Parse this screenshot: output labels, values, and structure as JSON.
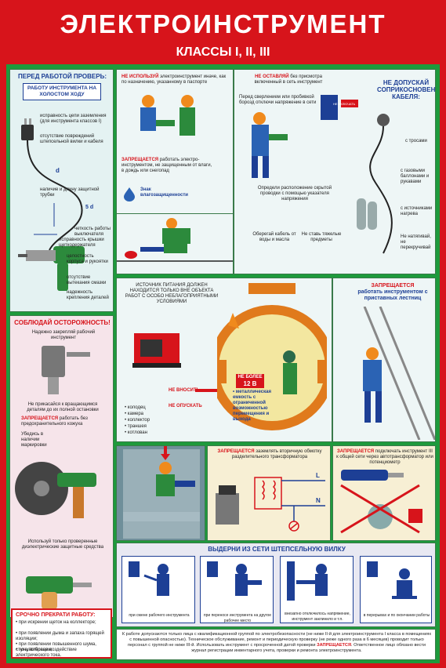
{
  "poster": {
    "title": "ЭЛЕКТРОИНСТРУМЕНТ",
    "subtitle": "КЛАССЫ I, II, III"
  },
  "left_top": {
    "heading": "ПЕРЕД РАБОТОЙ ПРОВЕРЬ:",
    "box": "РАБОТУ ИНСТРУМЕНТА НА ХОЛОСТОМ ХОДУ",
    "labels": [
      "исправность цепи заземления (для инструмента классов I)",
      "отсутствие повреждений штепсельной вилки и кабеля",
      "наличие и длину защитной трубки",
      "четкость работы выключателя",
      "исправность крышки щеткодержателя",
      "целостность корпуса и рукоятки",
      "отсутствие вытекания смазки",
      "надежность крепления деталей"
    ],
    "dim_d": "d",
    "dim_5d": "5 d"
  },
  "left_mid": {
    "heading": "СОБЛЮДАЙ ОСТОРОЖНОСТЬ!",
    "secure": "Надежно закрепляй рабочий инструмент",
    "no_touch": "Не прикасайся к вращающимся деталям до их полной остановки",
    "forbidden": "ЗАПРЕЩАЕТСЯ",
    "forbidden_rest": "работать без предохранительного кожуха",
    "marking": "Убедись в наличии маркировки",
    "protective": "Используй только проверенные диэлектрические защитные средства"
  },
  "left_bottom": {
    "heading": "СРОЧНО ПРЕКРАТИ РАБОТУ:",
    "items": [
      "• при искрении щеток на коллекторе;",
      "• при появлении дыма и запаха горящей изоляции;",
      "• при появлении повышенного шума, стука, вибрации;",
      "• почувствовав воздействие электрического тока."
    ]
  },
  "top_middle": {
    "no_use_bold": "НЕ ИСПОЛЬЗУЙ",
    "no_use_rest": "электроинструмент иначе, как по назначению, указанному в паспорте",
    "forbidden": "ЗАПРЕЩАЕТСЯ",
    "forbidden_rest": "работать электро-инструментом, не защищенным от влаги, в дождь или снегопад",
    "sign": "Знак влагозащищенности"
  },
  "top_right": {
    "no_leave_bold": "НЕ ОСТАВЛЯЙ",
    "no_leave_rest": "без присмотра включенный в сеть инструмент",
    "before_drill": "Перед сверлением или пробивкой борозд отключи напряжение в сети",
    "find_wiring": "Определи расположение скрытой проводки с помощью указателя напряжения",
    "plate": "НЕ ВКЛЮЧАТЬ",
    "heading": "НЕ ДОПУСКАЙ СОПРИКОСНОВЕНИЯ КАБЕЛЯ:",
    "cable_items": [
      "с тросами",
      "с газовыми баллонами и рукавами",
      "с источниками нагрева"
    ],
    "no_pull": "Не натягивай, не перекручивай",
    "protect_cable": "Оберегай кабель от воды и масла",
    "no_heavy": "Не ставь тяжелые предметы"
  },
  "middle": {
    "power_source": "ИСТОЧНИК ПИТАНИЯ ДОЛЖЕН НАХОДИТСЯ ТОЛЬКО ВНЕ ОБЪЕКТА РАБОТ С ОСОБО НЕБЛАГОПРИЯТНЫМИ УСЛОВИЯМИ",
    "no_bring": "НЕ ВНОСИТЬ",
    "no_lower": "НЕ ОПУСКАТЬ",
    "places": [
      "• колодец",
      "• камера",
      "• коллектор",
      "• траншея",
      "• котлован"
    ],
    "voltage_line1": "НЕ БОЛЕЕ",
    "voltage_line2": "12 В",
    "tank": "• металлическая емкость с ограниченной возможностью перемещения и выхода",
    "ladder_bold": "ЗАПРЕЩАЕТСЯ",
    "ladder_rest": "работать инструментом с приставных лестниц"
  },
  "lower": {
    "transformer_bold": "ЗАПРЕЩАЕТСЯ",
    "transformer_rest": "заземлять вторичную обмотку разделительного трансформатора",
    "label_L": "L",
    "label_N": "N",
    "autotransformer_bold": "ЗАПРЕЩАЕТСЯ",
    "autotransformer_rest": "подключать инструмент III к общей сети через автотрансформатор или потенциометр"
  },
  "unplug": {
    "heading": "ВЫДЕРНИ ИЗ СЕТИ ШТЕПСЕЛЬНУЮ ВИЛКУ",
    "cases": [
      "при смене рабочего инструмента",
      "при переносе инструмента на другое рабочее место",
      "внезапно отключилось напряжение, инструмент заклинило и т.п.",
      "в перерывах и по окончании работы"
    ]
  },
  "footer": {
    "text_a": "К работе допускаются только лица с квалификационной группой по электробезопасности (не ниже II-й для электроинструмента I класса в помещениях с повышенной опасностью). Техническое обслуживание, ремонт и периодическую проверку (не реже одного раза в 6 месяцев) проводит только персонал с группой не ниже III-й. Использовать инструмент с просроченной датой проверки",
    "text_bold": "ЗАПРЕЩАЕТСЯ",
    "text_b": ". Ответственное лицо обязано вести журнал регистрации инвентарного учета, проверки и ремонта электроинструмента."
  },
  "colors": {
    "red": "#d7141b",
    "green": "#1e9a3c",
    "blue": "#1d3f95",
    "worker_blue": "#2b63b4",
    "helmet": "#f08a1c"
  }
}
